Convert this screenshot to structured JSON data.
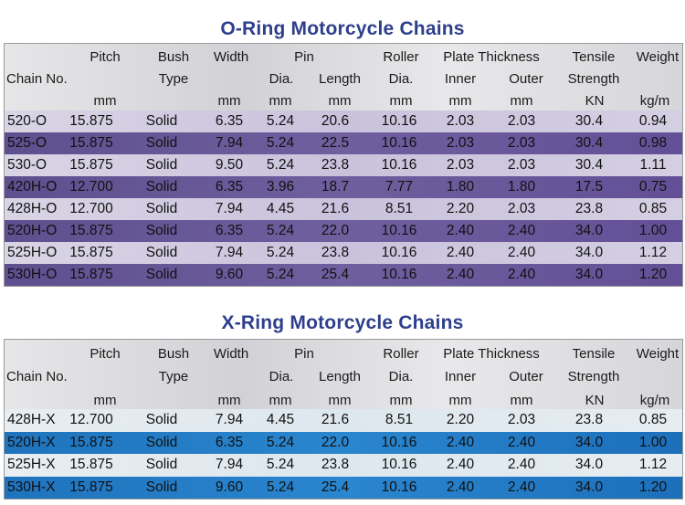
{
  "oring": {
    "title": "O-Ring Motorcycle Chains",
    "header": {
      "row1": [
        "Pitch",
        "Bush",
        "Width",
        "Pin",
        "Roller",
        "Plate Thickness",
        "Tensile",
        "Weight"
      ],
      "row2": [
        "Chain No.",
        "Type",
        "Dia.",
        "Length",
        "Dia.",
        "Inner",
        "Outer",
        "Strength"
      ],
      "row3": [
        "mm",
        "mm",
        "mm",
        "mm",
        "mm",
        "mm",
        "mm",
        "KN",
        "kg/m"
      ]
    },
    "rows": [
      [
        "520-O",
        "15.875",
        "Solid",
        "6.35",
        "5.24",
        "20.6",
        "10.16",
        "2.03",
        "2.03",
        "30.4",
        "0.94"
      ],
      [
        "525-O",
        "15.875",
        "Solid",
        "7.94",
        "5.24",
        "22.5",
        "10.16",
        "2.03",
        "2.03",
        "30.4",
        "0.98"
      ],
      [
        "530-O",
        "15.875",
        "Solid",
        "9.50",
        "5.24",
        "23.8",
        "10.16",
        "2.03",
        "2.03",
        "30.4",
        "1.11"
      ],
      [
        "420H-O",
        "12.700",
        "Solid",
        "6.35",
        "3.96",
        "18.7",
        "7.77",
        "1.80",
        "1.80",
        "17.5",
        "0.75"
      ],
      [
        "428H-O",
        "12.700",
        "Solid",
        "7.94",
        "4.45",
        "21.6",
        "8.51",
        "2.20",
        "2.03",
        "23.8",
        "0.85"
      ],
      [
        "520H-O",
        "15.875",
        "Solid",
        "6.35",
        "5.24",
        "22.0",
        "10.16",
        "2.40",
        "2.40",
        "34.0",
        "1.00"
      ],
      [
        "525H-O",
        "15.875",
        "Solid",
        "7.94",
        "5.24",
        "23.8",
        "10.16",
        "2.40",
        "2.40",
        "34.0",
        "1.12"
      ],
      [
        "530H-O",
        "15.875",
        "Solid",
        "9.60",
        "5.24",
        "25.4",
        "10.16",
        "2.40",
        "2.40",
        "34.0",
        "1.20"
      ]
    ]
  },
  "xring": {
    "title": "X-Ring Motorcycle Chains",
    "header": {
      "row1": [
        "Pitch",
        "Bush",
        "Width",
        "Pin",
        "Roller",
        "Plate Thickness",
        "Tensile",
        "Weight"
      ],
      "row2": [
        "Chain No.",
        "Type",
        "Dia.",
        "Length",
        "Dia.",
        "Inner",
        "Outer",
        "Strength"
      ],
      "row3": [
        "mm",
        "mm",
        "mm",
        "mm",
        "mm",
        "mm",
        "mm",
        "KN",
        "kg/m"
      ]
    },
    "rows": [
      [
        "428H-X",
        "12.700",
        "Solid",
        "7.94",
        "4.45",
        "21.6",
        "8.51",
        "2.20",
        "2.03",
        "23.8",
        "0.85"
      ],
      [
        "520H-X",
        "15.875",
        "Solid",
        "6.35",
        "5.24",
        "22.0",
        "10.16",
        "2.40",
        "2.40",
        "34.0",
        "1.00"
      ],
      [
        "525H-X",
        "15.875",
        "Solid",
        "7.94",
        "5.24",
        "23.8",
        "10.16",
        "2.40",
        "2.40",
        "34.0",
        "1.12"
      ],
      [
        "530H-X",
        "15.875",
        "Solid",
        "9.60",
        "5.24",
        "25.4",
        "10.16",
        "2.40",
        "2.40",
        "34.0",
        "1.20"
      ]
    ]
  },
  "colors": {
    "title": "#2e3f8c",
    "oring_dark_row": "#6a5a98",
    "oring_light_row": "#cfc9df",
    "xring_dark_row": "#2a80c8",
    "xring_light_row": "#e3eaef"
  }
}
